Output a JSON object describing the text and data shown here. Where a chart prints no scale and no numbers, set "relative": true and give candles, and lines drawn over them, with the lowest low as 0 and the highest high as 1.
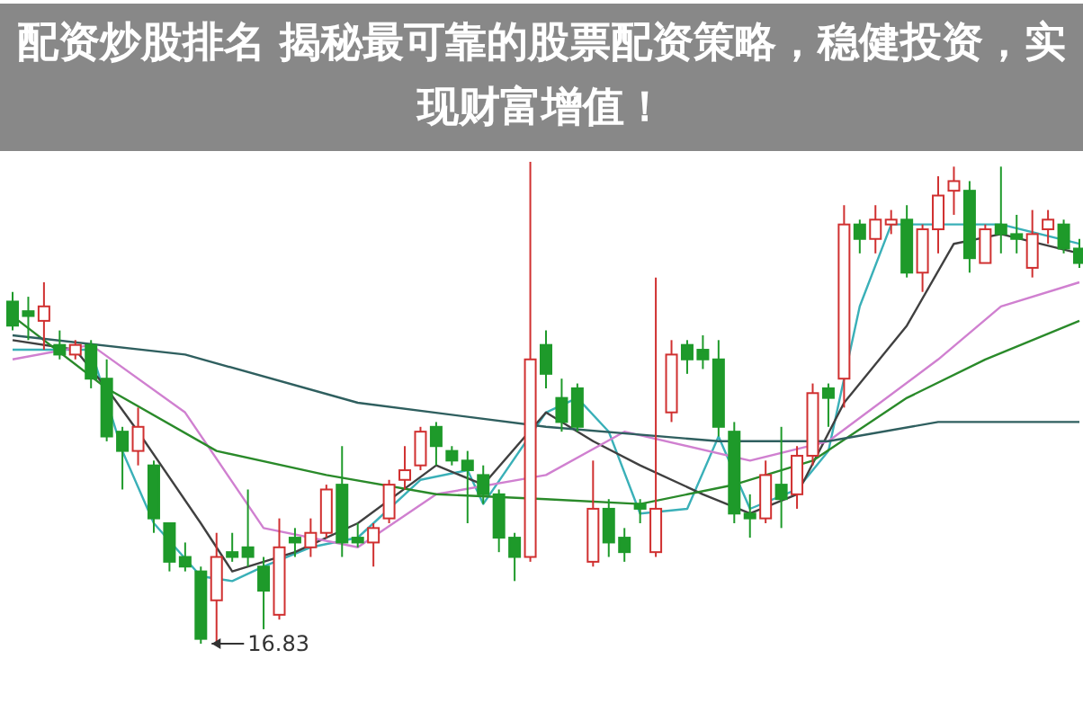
{
  "chart_data": {
    "type": "candlestick",
    "relative": true,
    "title": "配资炒股排名 揭秘最可靠的股票配资策略，稳健投资，实现财富增值！",
    "categories": [
      null,
      null,
      null,
      null,
      null,
      null,
      null,
      null,
      null,
      null,
      null,
      null,
      null,
      null,
      null,
      null,
      null,
      null,
      null,
      null,
      null,
      null,
      null,
      null,
      null,
      null,
      null,
      null,
      null,
      null,
      null,
      null,
      null,
      null,
      null,
      null,
      null,
      null,
      null,
      null,
      null,
      null,
      null,
      null,
      null,
      null,
      null,
      null,
      null,
      null,
      null,
      null,
      null,
      null,
      null,
      null,
      null,
      null,
      null,
      null,
      null,
      null,
      null,
      null,
      null,
      null,
      null,
      null,
      null
    ],
    "ohlc": [
      [
        0.71,
        0.73,
        0.65,
        0.66
      ],
      [
        0.69,
        0.72,
        0.63,
        0.68
      ],
      [
        0.67,
        0.75,
        0.61,
        0.7
      ],
      [
        0.62,
        0.65,
        0.59,
        0.6
      ],
      [
        0.6,
        0.63,
        0.59,
        0.62
      ],
      [
        0.62,
        0.63,
        0.53,
        0.55
      ],
      [
        0.55,
        0.59,
        0.42,
        0.43
      ],
      [
        0.44,
        0.45,
        0.32,
        0.4
      ],
      [
        0.4,
        0.49,
        0.37,
        0.45
      ],
      [
        0.37,
        0.38,
        0.23,
        0.26
      ],
      [
        0.25,
        0.25,
        0.15,
        0.17
      ],
      [
        0.18,
        0.21,
        0.15,
        0.16
      ],
      [
        0.15,
        0.16,
        0,
        0.01
      ],
      [
        0.09,
        0.23,
        0,
        0.18
      ],
      [
        0.19,
        0.23,
        0.17,
        0.18
      ],
      [
        0.2,
        0.32,
        0.16,
        0.18
      ],
      [
        0.16,
        0.18,
        0.03,
        0.11
      ],
      [
        0.06,
        0.26,
        0.05,
        0.2
      ],
      [
        0.22,
        0.24,
        0.18,
        0.21
      ],
      [
        0.2,
        0.26,
        0.18,
        0.23
      ],
      [
        0.23,
        0.33,
        0.22,
        0.32
      ],
      [
        0.33,
        0.41,
        0.18,
        0.21
      ],
      [
        0.22,
        0.25,
        0.2,
        0.21
      ],
      [
        0.21,
        0.25,
        0.16,
        0.24
      ],
      [
        0.26,
        0.34,
        0.25,
        0.33
      ],
      [
        0.34,
        0.41,
        0.32,
        0.36
      ],
      [
        0.37,
        0.45,
        0.36,
        0.44
      ],
      [
        0.45,
        0.46,
        0.37,
        0.41
      ],
      [
        0.4,
        0.41,
        0.37,
        0.38
      ],
      [
        0.38,
        0.4,
        0.25,
        0.36
      ],
      [
        0.35,
        0.37,
        0.29,
        0.31
      ],
      [
        0.31,
        0.32,
        0.19,
        0.22
      ],
      [
        0.22,
        0.23,
        0.13,
        0.18
      ],
      [
        0.18,
        1.0,
        0.17,
        0.59
      ],
      [
        0.62,
        0.65,
        0.53,
        0.56
      ],
      [
        0.51,
        0.55,
        0.44,
        0.46
      ],
      [
        0.53,
        0.54,
        0.44,
        0.45
      ],
      [
        0.17,
        0.38,
        0.16,
        0.28
      ],
      [
        0.28,
        0.3,
        0.18,
        0.21
      ],
      [
        0.22,
        0.24,
        0.17,
        0.19
      ],
      [
        0.29,
        0.3,
        0.25,
        0.28
      ],
      [
        0.19,
        0.76,
        0.18,
        0.28
      ],
      [
        0.48,
        0.63,
        0.46,
        0.6
      ],
      [
        0.62,
        0.63,
        0.56,
        0.59
      ],
      [
        0.61,
        0.64,
        0.57,
        0.59
      ],
      [
        0.59,
        0.63,
        0.43,
        0.45
      ],
      [
        0.44,
        0.46,
        0.25,
        0.27
      ],
      [
        0.27,
        0.31,
        0.22,
        0.26
      ],
      [
        0.26,
        0.38,
        0.25,
        0.35
      ],
      [
        0.33,
        0.45,
        0.24,
        0.3
      ],
      [
        0.31,
        0.41,
        0.28,
        0.39
      ],
      [
        0.39,
        0.54,
        0.37,
        0.52
      ],
      [
        0.53,
        0.54,
        0.45,
        0.51
      ],
      [
        0.55,
        0.91,
        0.49,
        0.87
      ],
      [
        0.87,
        0.88,
        0.81,
        0.84
      ],
      [
        0.84,
        0.91,
        0.81,
        0.88
      ],
      [
        0.87,
        0.9,
        0.85,
        0.88
      ],
      [
        0.88,
        0.91,
        0.76,
        0.77
      ],
      [
        0.77,
        0.87,
        0.73,
        0.86
      ],
      [
        0.86,
        0.97,
        0.81,
        0.93
      ],
      [
        0.94,
        0.99,
        0.89,
        0.96
      ],
      [
        0.94,
        0.96,
        0.77,
        0.8
      ],
      [
        0.79,
        0.87,
        0.79,
        0.86
      ],
      [
        0.87,
        0.99,
        0.81,
        0.85
      ],
      [
        0.85,
        0.89,
        0.81,
        0.84
      ],
      [
        0.78,
        0.9,
        0.76,
        0.85
      ],
      [
        0.86,
        0.9,
        0.83,
        0.88
      ],
      [
        0.87,
        0.88,
        0.81,
        0.82
      ],
      [
        0.82,
        0.84,
        0.78,
        0.79
      ]
    ],
    "series": [
      {
        "type": "line",
        "color": "#3ab0b8",
        "values": [
          0.61,
          null,
          null,
          null,
          null,
          0.61,
          null,
          0.4,
          null,
          0.25,
          null,
          null,
          0.14,
          null,
          0.13,
          null,
          0.16,
          null,
          null,
          0.2,
          null,
          null,
          0.22,
          null,
          null,
          null,
          0.34,
          null,
          null,
          0.36,
          0.29,
          null,
          null,
          null,
          0.48,
          null,
          0.51,
          null,
          0.44,
          null,
          0.27,
          null,
          null,
          0.28,
          null,
          0.43,
          null,
          0.28,
          null,
          null,
          0.32,
          null,
          0.4,
          null,
          0.7,
          null,
          0.87,
          null,
          null,
          0.87,
          null,
          null,
          null,
          0.87,
          null,
          null,
          null,
          null,
          0.83
        ]
      },
      {
        "type": "line",
        "color": "#404040",
        "values": [
          0.63,
          null,
          null,
          null,
          0.61,
          null,
          0.53,
          null,
          0.44,
          null,
          null,
          null,
          0.25,
          null,
          0.15,
          null,
          null,
          null,
          0.19,
          null,
          null,
          null,
          0.25,
          null,
          null,
          null,
          null,
          0.37,
          null,
          null,
          0.33,
          null,
          null,
          null,
          0.48,
          null,
          null,
          0.42,
          null,
          null,
          0.37,
          null,
          null,
          null,
          0.31,
          null,
          null,
          0.27,
          null,
          null,
          0.31,
          null,
          null,
          0.5,
          null,
          null,
          null,
          0.66,
          null,
          null,
          0.83,
          null,
          null,
          0.85,
          null,
          null,
          null,
          null,
          0.81
        ]
      },
      {
        "type": "line",
        "color": "#d080d0",
        "values": [
          0.59,
          null,
          null,
          null,
          null,
          0.62,
          null,
          null,
          null,
          null,
          null,
          0.48,
          null,
          null,
          null,
          null,
          0.24,
          null,
          null,
          null,
          null,
          null,
          0.2,
          null,
          null,
          null,
          null,
          0.31,
          null,
          null,
          null,
          null,
          null,
          null,
          0.35,
          null,
          null,
          null,
          null,
          0.44,
          null,
          null,
          null,
          null,
          null,
          null,
          null,
          0.38,
          null,
          null,
          null,
          null,
          0.42,
          null,
          null,
          null,
          null,
          null,
          null,
          0.59,
          null,
          null,
          null,
          0.7,
          null,
          null,
          null,
          null,
          0.75
        ]
      },
      {
        "type": "line",
        "color": "#2a8a2a",
        "values": [
          0.68,
          null,
          null,
          null,
          null,
          null,
          0.53,
          null,
          null,
          null,
          null,
          null,
          null,
          0.4,
          null,
          null,
          null,
          null,
          null,
          null,
          0.35,
          null,
          null,
          null,
          null,
          null,
          null,
          0.31,
          null,
          null,
          null,
          null,
          null,
          null,
          0.3,
          null,
          null,
          null,
          null,
          null,
          0.29,
          null,
          null,
          null,
          null,
          null,
          0.33,
          null,
          null,
          null,
          null,
          0.38,
          null,
          null,
          null,
          null,
          null,
          0.51,
          null,
          null,
          null,
          null,
          0.59,
          null,
          null,
          null,
          null,
          null,
          0.67
        ]
      },
      {
        "type": "line",
        "color": "#2f5f5f",
        "values": [
          0.64,
          null,
          null,
          null,
          null,
          null,
          null,
          null,
          null,
          null,
          null,
          0.6,
          null,
          null,
          null,
          null,
          null,
          null,
          null,
          null,
          null,
          null,
          0.5,
          null,
          null,
          null,
          null,
          null,
          null,
          null,
          null,
          null,
          null,
          null,
          0.45,
          null,
          null,
          null,
          null,
          null,
          null,
          null,
          null,
          null,
          null,
          0.42,
          null,
          null,
          null,
          null,
          null,
          null,
          0.42,
          null,
          null,
          null,
          null,
          null,
          null,
          0.46,
          null,
          null,
          null,
          null,
          null,
          null,
          null,
          null,
          0.46
        ]
      }
    ],
    "annotations": [
      "16.83"
    ]
  }
}
